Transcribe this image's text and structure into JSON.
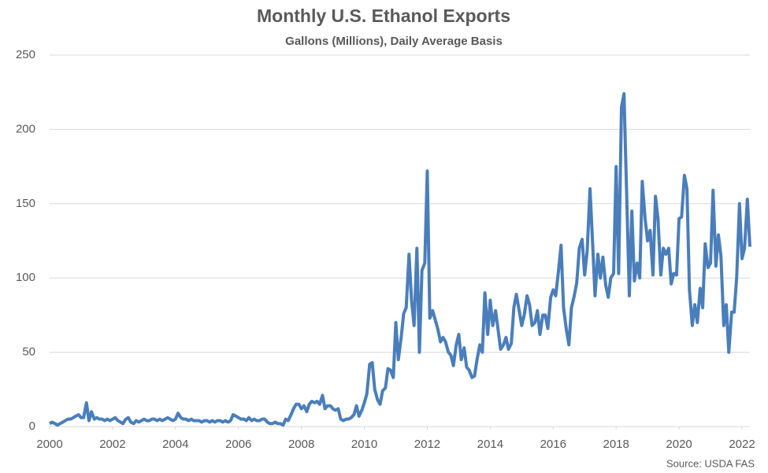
{
  "chart_data": {
    "type": "line",
    "title": "Monthly U.S. Ethanol Exports",
    "subtitle": "Gallons (Millions), Daily Average Basis",
    "source": "Source: USDA FAS",
    "color": "#4a7ebb",
    "grid": true,
    "xlim": [
      2000,
      2022.25
    ],
    "xticks": [
      2000,
      2002,
      2004,
      2006,
      2008,
      2010,
      2012,
      2014,
      2016,
      2018,
      2020,
      2022
    ],
    "ylim": [
      0,
      250
    ],
    "yticks": [
      0,
      50,
      100,
      150,
      200,
      250
    ],
    "x": [
      2000,
      2000.08,
      2000.17,
      2000.25,
      2000.33,
      2000.42,
      2000.5,
      2000.58,
      2000.67,
      2000.75,
      2000.83,
      2000.92,
      2001,
      2001.08,
      2001.17,
      2001.25,
      2001.33,
      2001.42,
      2001.5,
      2001.58,
      2001.67,
      2001.75,
      2001.83,
      2001.92,
      2002,
      2002.08,
      2002.17,
      2002.25,
      2002.33,
      2002.42,
      2002.5,
      2002.58,
      2002.67,
      2002.75,
      2002.83,
      2002.92,
      2003,
      2003.08,
      2003.17,
      2003.25,
      2003.33,
      2003.42,
      2003.5,
      2003.58,
      2003.67,
      2003.75,
      2003.83,
      2003.92,
      2004,
      2004.08,
      2004.17,
      2004.25,
      2004.33,
      2004.42,
      2004.5,
      2004.58,
      2004.67,
      2004.75,
      2004.83,
      2004.92,
      2005,
      2005.08,
      2005.17,
      2005.25,
      2005.33,
      2005.42,
      2005.5,
      2005.58,
      2005.67,
      2005.75,
      2005.83,
      2005.92,
      2006,
      2006.08,
      2006.17,
      2006.25,
      2006.33,
      2006.42,
      2006.5,
      2006.58,
      2006.67,
      2006.75,
      2006.83,
      2006.92,
      2007,
      2007.08,
      2007.17,
      2007.25,
      2007.33,
      2007.42,
      2007.5,
      2007.58,
      2007.67,
      2007.75,
      2007.83,
      2007.92,
      2008,
      2008.08,
      2008.17,
      2008.25,
      2008.33,
      2008.42,
      2008.5,
      2008.58,
      2008.67,
      2008.75,
      2008.83,
      2008.92,
      2009,
      2009.08,
      2009.17,
      2009.25,
      2009.33,
      2009.42,
      2009.5,
      2009.58,
      2009.67,
      2009.75,
      2009.83,
      2009.92,
      2010,
      2010.08,
      2010.17,
      2010.25,
      2010.33,
      2010.42,
      2010.5,
      2010.58,
      2010.67,
      2010.75,
      2010.83,
      2010.92,
      2011,
      2011.08,
      2011.17,
      2011.25,
      2011.33,
      2011.42,
      2011.5,
      2011.58,
      2011.67,
      2011.75,
      2011.83,
      2011.92,
      2012,
      2012.08,
      2012.17,
      2012.25,
      2012.33,
      2012.42,
      2012.5,
      2012.58,
      2012.67,
      2012.75,
      2012.83,
      2012.92,
      2013,
      2013.08,
      2013.17,
      2013.25,
      2013.33,
      2013.42,
      2013.5,
      2013.58,
      2013.67,
      2013.75,
      2013.83,
      2013.92,
      2014,
      2014.08,
      2014.17,
      2014.25,
      2014.33,
      2014.42,
      2014.5,
      2014.58,
      2014.67,
      2014.75,
      2014.83,
      2014.92,
      2015,
      2015.08,
      2015.17,
      2015.25,
      2015.33,
      2015.42,
      2015.5,
      2015.58,
      2015.67,
      2015.75,
      2015.83,
      2015.92,
      2016,
      2016.08,
      2016.17,
      2016.25,
      2016.33,
      2016.42,
      2016.5,
      2016.58,
      2016.67,
      2016.75,
      2016.83,
      2016.92,
      2017,
      2017.08,
      2017.17,
      2017.25,
      2017.33,
      2017.42,
      2017.5,
      2017.58,
      2017.67,
      2017.75,
      2017.83,
      2017.92,
      2018,
      2018.08,
      2018.17,
      2018.25,
      2018.33,
      2018.42,
      2018.5,
      2018.58,
      2018.67,
      2018.75,
      2018.83,
      2018.92,
      2019,
      2019.08,
      2019.17,
      2019.25,
      2019.33,
      2019.42,
      2019.5,
      2019.58,
      2019.67,
      2019.75,
      2019.83,
      2019.92,
      2020,
      2020.08,
      2020.17,
      2020.25,
      2020.33,
      2020.42,
      2020.5,
      2020.58,
      2020.67,
      2020.75,
      2020.83,
      2020.92,
      2021,
      2021.08,
      2021.17,
      2021.25,
      2021.33,
      2021.42,
      2021.5,
      2021.58,
      2021.67,
      2021.75,
      2021.83,
      2021.92,
      2022,
      2022.08,
      2022.17,
      2022.25
    ],
    "values": [
      2,
      3,
      2,
      1,
      2,
      3,
      4,
      5,
      5,
      6,
      7,
      8,
      6,
      6,
      16,
      4,
      10,
      5,
      6,
      5,
      5,
      4,
      5,
      4,
      5,
      6,
      4,
      3,
      2,
      5,
      6,
      3,
      2,
      4,
      3,
      4,
      5,
      4,
      4,
      5,
      5,
      4,
      5,
      4,
      5,
      6,
      5,
      4,
      5,
      9,
      6,
      5,
      5,
      4,
      5,
      4,
      4,
      4,
      3,
      4,
      4,
      3,
      4,
      3,
      4,
      4,
      3,
      4,
      3,
      4,
      8,
      7,
      6,
      5,
      5,
      4,
      6,
      4,
      5,
      4,
      4,
      5,
      5,
      3,
      2,
      2,
      3,
      2,
      2,
      1,
      5,
      4,
      8,
      12,
      15,
      15,
      12,
      14,
      10,
      15,
      17,
      16,
      17,
      15,
      21,
      12,
      14,
      14,
      12,
      11,
      12,
      5,
      4,
      5,
      5,
      6,
      8,
      14,
      7,
      11,
      16,
      22,
      42,
      43,
      25,
      18,
      15,
      24,
      26,
      39,
      38,
      33,
      70,
      45,
      60,
      76,
      80,
      116,
      85,
      68,
      120,
      50,
      105,
      110,
      172,
      73,
      78,
      72,
      66,
      57,
      60,
      57,
      50,
      48,
      41,
      55,
      62,
      45,
      53,
      40,
      38,
      33,
      34,
      45,
      55,
      50,
      90,
      62,
      85,
      68,
      78,
      65,
      52,
      55,
      60,
      52,
      56,
      80,
      89,
      78,
      68,
      75,
      88,
      82,
      68,
      70,
      78,
      62,
      75,
      75,
      66,
      87,
      92,
      88,
      105,
      122,
      80,
      65,
      55,
      80,
      88,
      97,
      120,
      126,
      102,
      118,
      160,
      125,
      88,
      116,
      100,
      114,
      95,
      87,
      100,
      103,
      175,
      103,
      215,
      224,
      160,
      88,
      145,
      98,
      110,
      100,
      165,
      140,
      125,
      132,
      102,
      155,
      140,
      102,
      120,
      116,
      120,
      96,
      103,
      102,
      140,
      141,
      169,
      160,
      92,
      68,
      82,
      70,
      93,
      80,
      123,
      107,
      110,
      159,
      108,
      129,
      115,
      68,
      82,
      50,
      77,
      77,
      100,
      150,
      113,
      120,
      153,
      121
    ]
  }
}
